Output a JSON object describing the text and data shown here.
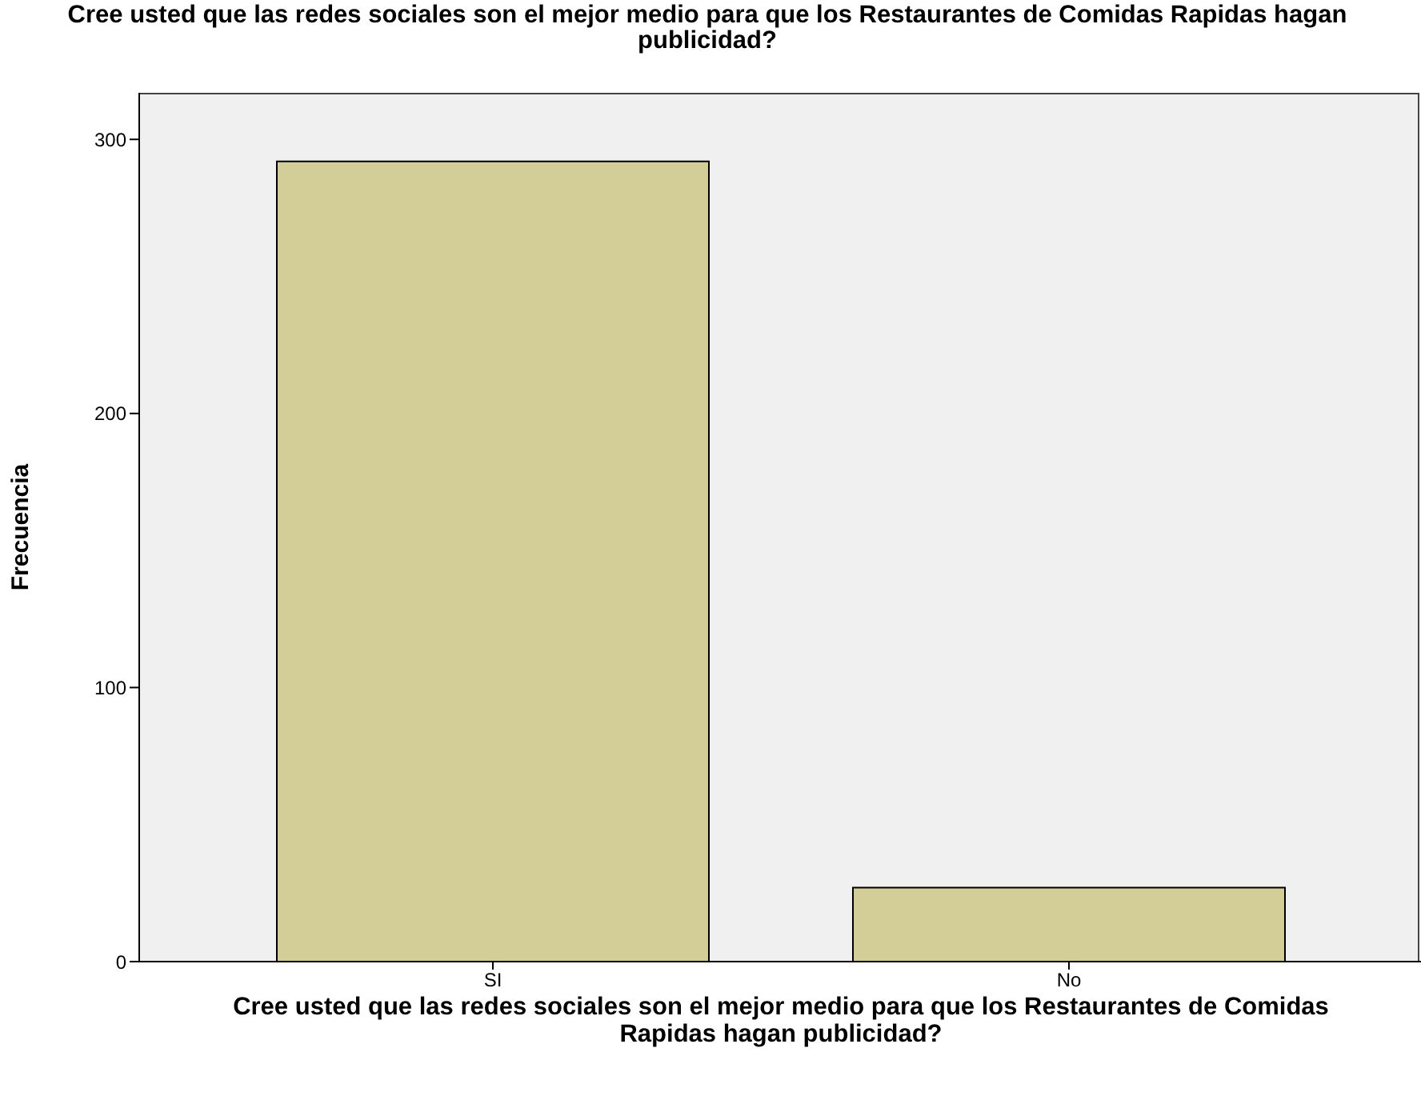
{
  "chart_data": {
    "type": "bar",
    "title": "Cree usted que las redes sociales son el mejor medio para que los Restaurantes de Comidas Rapidas hagan publicidad?",
    "xlabel": "Cree usted que las redes sociales son el mejor medio para que los Restaurantes de Comidas Rapidas hagan publicidad?",
    "ylabel": "Frecuencia",
    "categories": [
      "SI",
      "No"
    ],
    "values": [
      292,
      27
    ],
    "color": "#d3ce97",
    "ylim": [
      0,
      317
    ],
    "yticks": [
      0,
      100,
      200,
      300
    ],
    "grid": false,
    "legend": false
  }
}
